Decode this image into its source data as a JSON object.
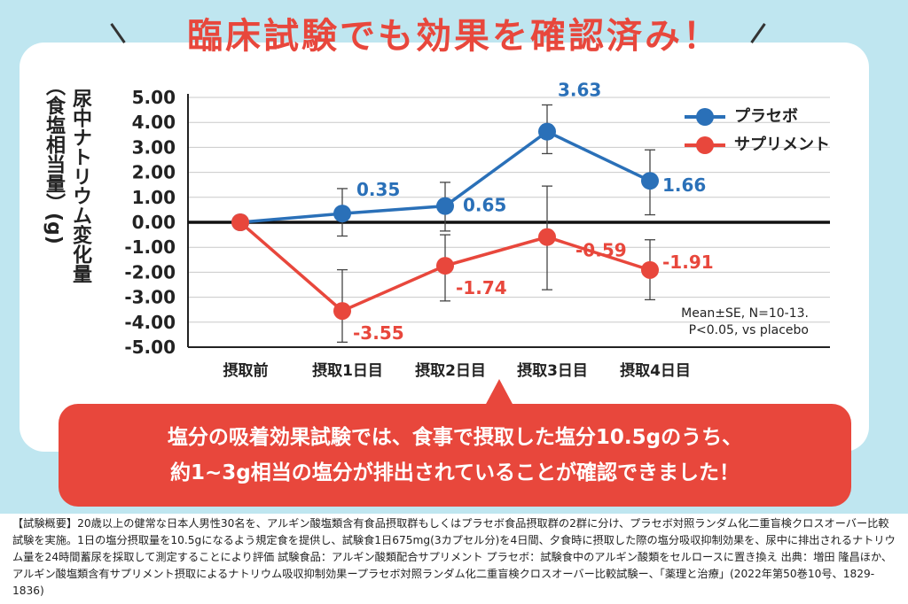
{
  "headline": "臨床試験でも効果を確認済み！",
  "chart_data": {
    "type": "line",
    "ylabel_main": "尿中ナトリウム変化量",
    "ylabel_sub": "（食塩相当量）(g)",
    "categories": [
      "摂取前",
      "摂取1日目",
      "摂取2日目",
      "摂取3日目",
      "摂取4日目"
    ],
    "y_ticks": [
      "5.00",
      "4.00",
      "3.00",
      "2.00",
      "1.00",
      "0.00",
      "-1.00",
      "-2.00",
      "-3.00",
      "-4.00",
      "-5.00"
    ],
    "ylim": [
      -5,
      5
    ],
    "grid": true,
    "legend_position": "top-right",
    "series": [
      {
        "name": "プラセボ",
        "color": "#2a70b8",
        "values": [
          0,
          0.35,
          0.65,
          3.63,
          1.66
        ],
        "error_low": [
          0,
          -0.55,
          -0.35,
          2.75,
          0.3
        ],
        "error_high": [
          0,
          1.35,
          1.6,
          4.7,
          2.9
        ],
        "labels": [
          "",
          "0.35",
          "0.65",
          "3.63",
          "1.66"
        ]
      },
      {
        "name": "サプリメント",
        "color": "#e8473c",
        "values": [
          0,
          -3.55,
          -1.74,
          -0.59,
          -1.91
        ],
        "error_low": [
          0,
          -4.8,
          -3.15,
          -2.7,
          -3.1
        ],
        "error_high": [
          0,
          -1.9,
          -0.5,
          1.45,
          -0.7
        ],
        "labels": [
          "",
          "-3.55",
          "-1.74",
          "-0.59",
          "-1.91"
        ]
      }
    ],
    "stats_line1": "Mean±SE, N=10-13.",
    "stats_line2": "P<0.05, vs placebo"
  },
  "callout": {
    "line1": "塩分の吸着効果試験では、食事で摂取した塩分10.5gのうち、",
    "line2": "約1~3g相当の塩分が排出されていることが確認できました！"
  },
  "footnote": "【試験概要】20歳以上の健常な日本人男性30名を、アルギン酸塩類含有食品摂取群もしくはプラセボ食品摂取群の2群に分け、プラセボ対照ランダム化二重盲検クロスオーバー比較試験を実施。1日の塩分摂取量を10.5gになるよう規定食を提供し、試験食1日675mg(3カプセル分)を4日間、夕食時に摂取した際の塩分吸収抑制効果を、尿中に排出されるナトリウム量を24時間蓄尿を採取して測定することにより評価 試験食品：アルギン酸類配合サプリメント プラセボ：試験食中のアルギン酸類をセルロースに置き換え 出典：増田 隆昌ほか、アルギン酸塩類含有サプリメント摂取によるナトリウム吸収抑制効果ープラセボ対照ランダム化二重盲検クロスオーバー比較試験ー、「薬理と治療」(2022年第50巻10号、1829-1836)"
}
